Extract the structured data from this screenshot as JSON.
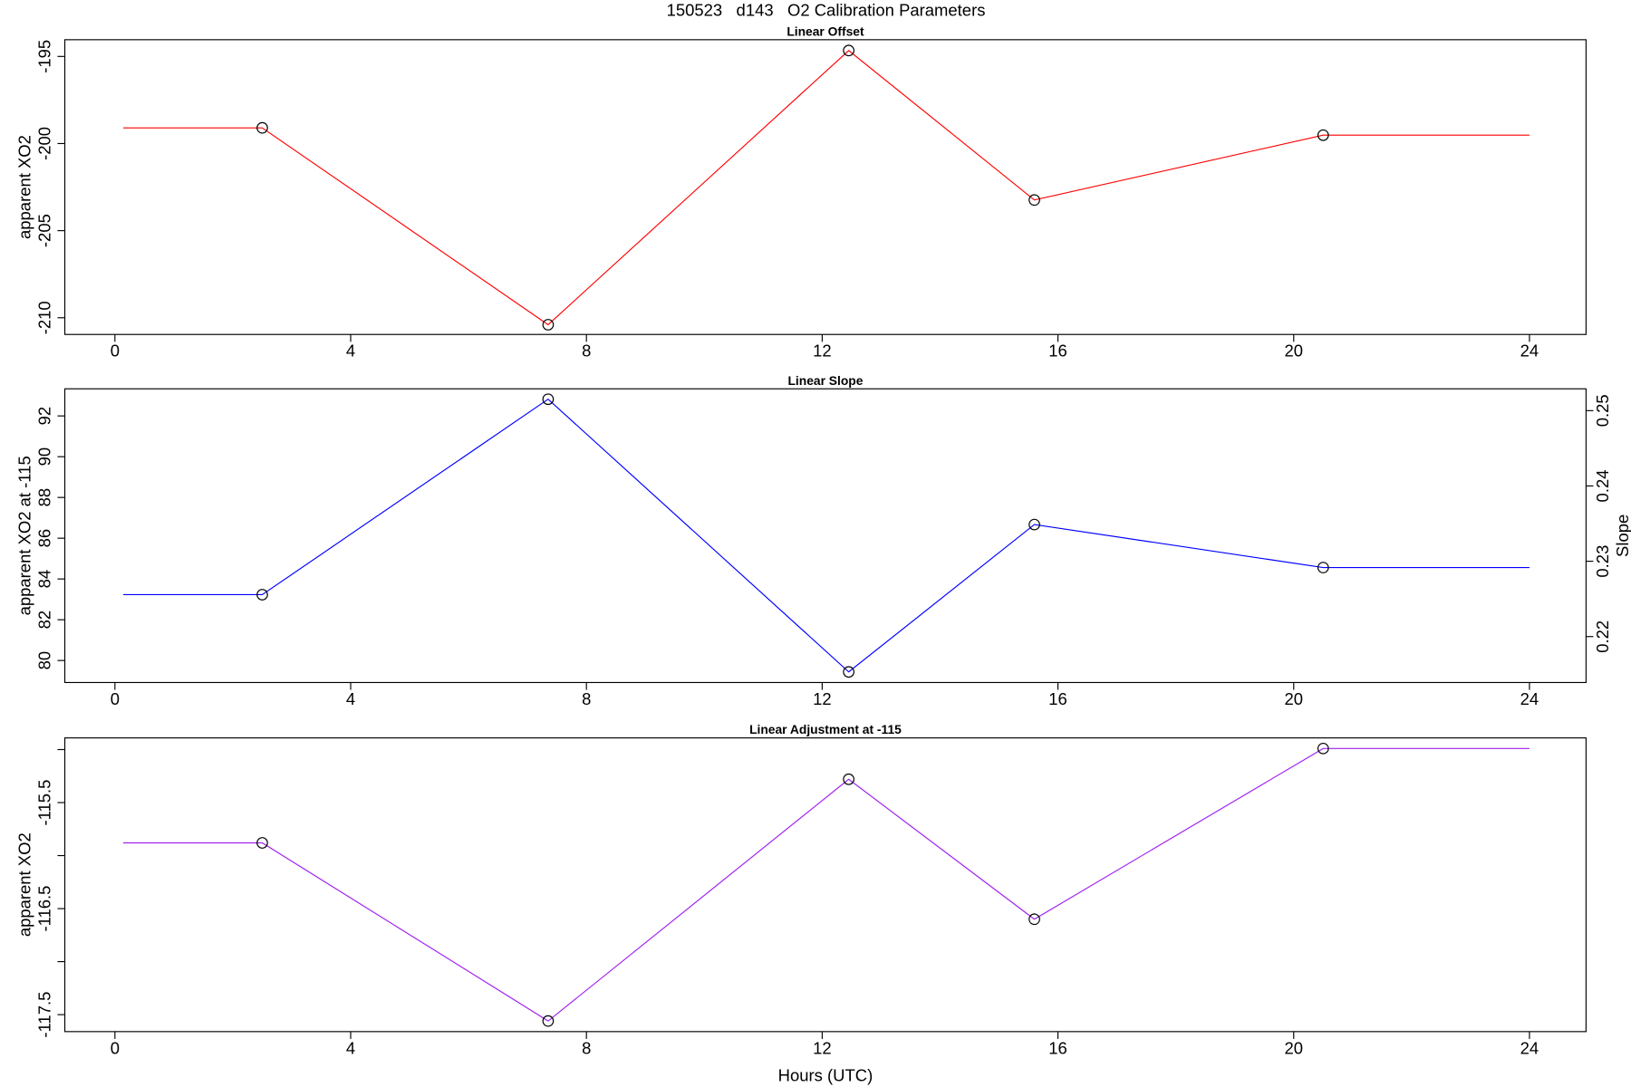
{
  "title": "150523   d143   O2 Calibration Parameters",
  "chart_data": [
    {
      "type": "line",
      "title": "Linear Offset",
      "ylabel": "apparent XO2",
      "x": [
        0.14,
        2.5,
        7.35,
        12.45,
        15.6,
        20.5,
        24
      ],
      "series": [
        {
          "color": "#ff0000",
          "values": [
            -199.1,
            -199.1,
            -210.4,
            -194.66,
            -203.24,
            -199.52,
            -199.52
          ],
          "markers": [
            false,
            true,
            true,
            true,
            true,
            true,
            false
          ]
        }
      ],
      "xlim": [
        -0.85,
        24.96
      ],
      "xticks": [
        0,
        4,
        8,
        12,
        16,
        20,
        24
      ],
      "ylim": [
        -210.96,
        -194.04
      ],
      "yticks": [
        -195,
        -200,
        -205,
        -210
      ]
    },
    {
      "type": "line",
      "title": "Linear Slope",
      "ylabel": "apparent XO2 at -115",
      "y2label": "Slope",
      "x": [
        0.14,
        2.5,
        7.35,
        12.45,
        15.6,
        20.5,
        24
      ],
      "series": [
        {
          "color": "#0000ff",
          "values": [
            83.23,
            83.23,
            92.82,
            79.44,
            86.67,
            84.56,
            84.56
          ],
          "markers": [
            false,
            true,
            true,
            true,
            true,
            true,
            false
          ]
        }
      ],
      "xlim": [
        -0.85,
        24.96
      ],
      "xticks": [
        0,
        4,
        8,
        12,
        16,
        20,
        24
      ],
      "ylim": [
        78.92,
        93.33
      ],
      "yticks": [
        80,
        82,
        84,
        86,
        88,
        90,
        92
      ],
      "y2lim": [
        0.2139,
        0.2529
      ],
      "y2ticks": [
        0.22,
        0.23,
        0.24,
        0.25
      ]
    },
    {
      "type": "line",
      "title": "Linear Adjustment at -115",
      "ylabel": "apparent XO2",
      "xlabel": "Hours (UTC)",
      "x": [
        0.14,
        2.5,
        7.35,
        12.45,
        15.6,
        20.5,
        24
      ],
      "series": [
        {
          "color": "#a020f0",
          "values": [
            -115.88,
            -115.88,
            -117.56,
            -115.28,
            -116.6,
            -114.99,
            -114.99
          ],
          "markers": [
            false,
            true,
            true,
            true,
            true,
            true,
            false
          ]
        }
      ],
      "xlim": [
        -0.85,
        24.96
      ],
      "xticks": [
        0,
        4,
        8,
        12,
        16,
        20,
        24
      ],
      "ylim": [
        -117.66,
        -114.89
      ],
      "yticks": [
        -115.5,
        -116.5,
        -117.5
      ],
      "yticks_unlabeled": [
        -115,
        -116,
        -117
      ]
    }
  ]
}
